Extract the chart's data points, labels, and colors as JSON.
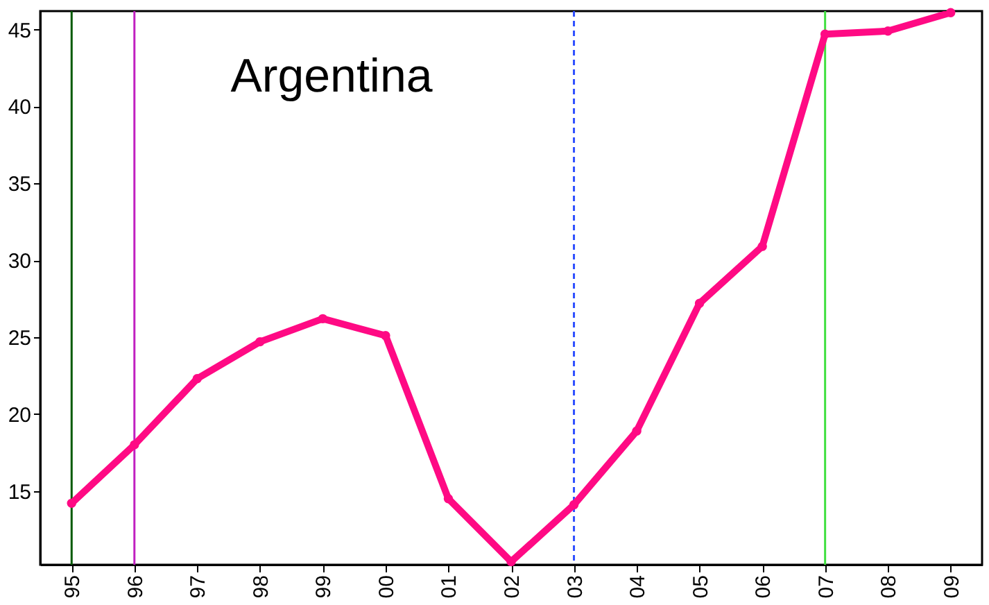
{
  "chart_data": {
    "type": "line",
    "title": "Argentina",
    "categories": [
      "95",
      "96",
      "97",
      "98",
      "99",
      "00",
      "01",
      "02",
      "03",
      "04",
      "05",
      "06",
      "07",
      "08",
      "09"
    ],
    "series": [
      {
        "color": "#ff0a84",
        "values": [
          14.2,
          18.0,
          22.3,
          24.7,
          26.2,
          25.1,
          14.5,
          10.4,
          14.1,
          18.9,
          27.2,
          30.9,
          44.7,
          44.9,
          46.1
        ]
      }
    ],
    "ylim": [
      10.2,
      46.2
    ],
    "yticks": [
      15,
      20,
      25,
      30,
      35,
      40,
      45
    ],
    "grid": false,
    "marker": "circle",
    "line_style": "solid",
    "ref_lines": [
      {
        "axis": "x",
        "value": "95",
        "color": "#005a00",
        "line_style": "solid"
      },
      {
        "axis": "x",
        "value": "96",
        "color": "#c020c0",
        "line_style": "solid"
      },
      {
        "axis": "x",
        "value": "03",
        "color": "#3050ff",
        "line_style": "dashed"
      },
      {
        "axis": "x",
        "value": "07",
        "color": "#40e040",
        "line_style": "solid"
      }
    ]
  }
}
